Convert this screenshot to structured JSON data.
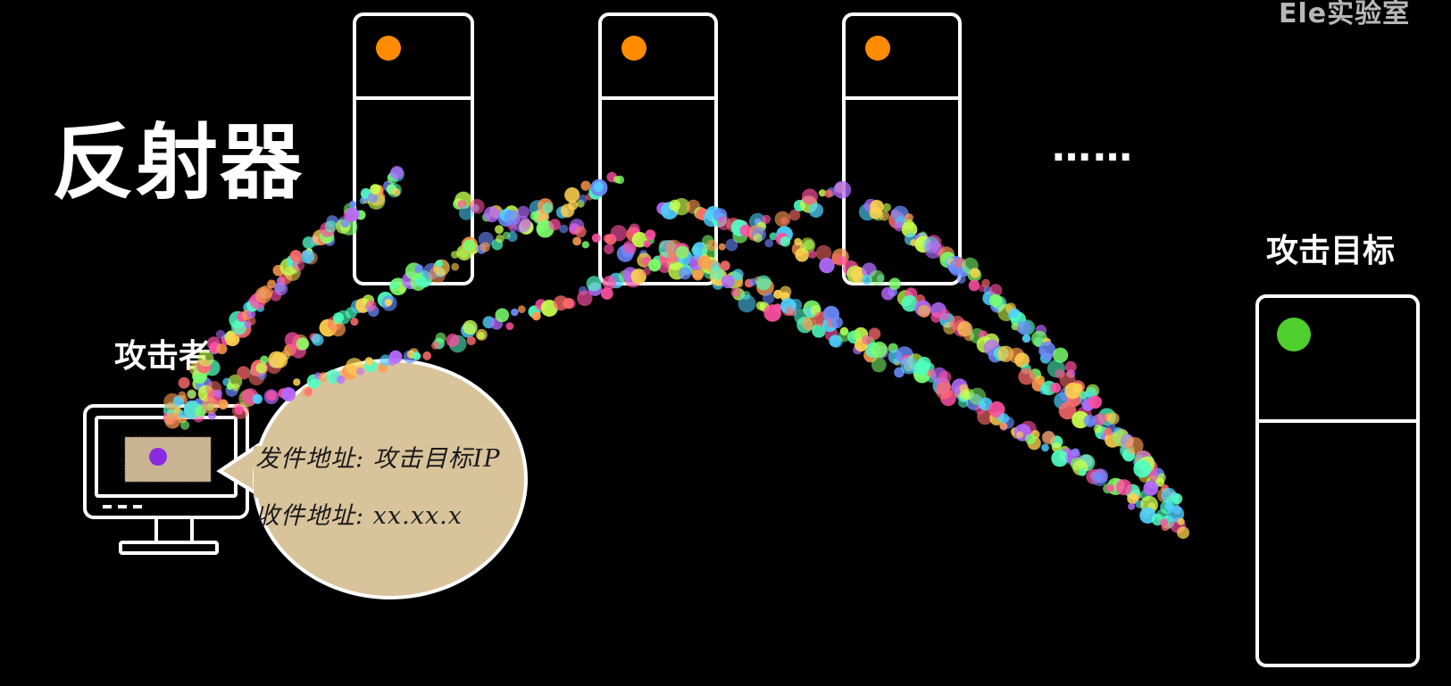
{
  "watermark": "Ele实验室",
  "title": "反射器",
  "attacker_label": "攻击者",
  "target_label": "攻击目标",
  "ellipsis": "……",
  "envelope": {
    "sender": "发件地址: 攻击目标IP",
    "receiver": "收件地址: xx.xx.x"
  },
  "colors": {
    "background": "#000000",
    "reflector_led": "#ff8c00",
    "target_led": "#4fce2e",
    "bubble": "#d8c39b",
    "packet_dot": "#8a2be2"
  }
}
